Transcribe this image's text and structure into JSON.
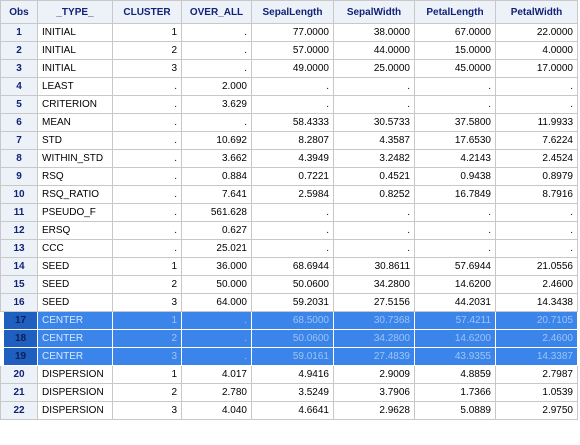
{
  "columns": [
    "Obs",
    "_TYPE_",
    "CLUSTER",
    "OVER_ALL",
    "SepalLength",
    "SepalWidth",
    "PetalLength",
    "PetalWidth"
  ],
  "rows": [
    [
      "1",
      "INITIAL",
      "1",
      ".",
      "77.0000",
      "38.0000",
      "67.0000",
      "22.0000"
    ],
    [
      "2",
      "INITIAL",
      "2",
      ".",
      "57.0000",
      "44.0000",
      "15.0000",
      "4.0000"
    ],
    [
      "3",
      "INITIAL",
      "3",
      ".",
      "49.0000",
      "25.0000",
      "45.0000",
      "17.0000"
    ],
    [
      "4",
      "LEAST",
      ".",
      "2.000",
      ".",
      ".",
      ".",
      "."
    ],
    [
      "5",
      "CRITERION",
      ".",
      "3.629",
      ".",
      ".",
      ".",
      "."
    ],
    [
      "6",
      "MEAN",
      ".",
      ".",
      "58.4333",
      "30.5733",
      "37.5800",
      "11.9933"
    ],
    [
      "7",
      "STD",
      ".",
      "10.692",
      "8.2807",
      "4.3587",
      "17.6530",
      "7.6224"
    ],
    [
      "8",
      "WITHIN_STD",
      ".",
      "3.662",
      "4.3949",
      "3.2482",
      "4.2143",
      "2.4524"
    ],
    [
      "9",
      "RSQ",
      ".",
      "0.884",
      "0.7221",
      "0.4521",
      "0.9438",
      "0.8979"
    ],
    [
      "10",
      "RSQ_RATIO",
      ".",
      "7.641",
      "2.5984",
      "0.8252",
      "16.7849",
      "8.7916"
    ],
    [
      "11",
      "PSEUDO_F",
      ".",
      "561.628",
      ".",
      ".",
      ".",
      "."
    ],
    [
      "12",
      "ERSQ",
      ".",
      "0.627",
      ".",
      ".",
      ".",
      "."
    ],
    [
      "13",
      "CCC",
      ".",
      "25.021",
      ".",
      ".",
      ".",
      "."
    ],
    [
      "14",
      "SEED",
      "1",
      "36.000",
      "68.6944",
      "30.8611",
      "57.6944",
      "21.0556"
    ],
    [
      "15",
      "SEED",
      "2",
      "50.000",
      "50.0600",
      "34.2800",
      "14.6200",
      "2.4600"
    ],
    [
      "16",
      "SEED",
      "3",
      "64.000",
      "59.2031",
      "27.5156",
      "44.2031",
      "14.3438"
    ],
    [
      "17",
      "CENTER",
      "1",
      ".",
      "68.5000",
      "30.7368",
      "57.4211",
      "20.7105"
    ],
    [
      "18",
      "CENTER",
      "2",
      ".",
      "50.0600",
      "34.2800",
      "14.6200",
      "2.4600"
    ],
    [
      "19",
      "CENTER",
      "3",
      ".",
      "59.0161",
      "27.4839",
      "43.9355",
      "14.3387"
    ],
    [
      "20",
      "DISPERSION",
      "1",
      "4.017",
      "4.9416",
      "2.9009",
      "4.8859",
      "2.7987"
    ],
    [
      "21",
      "DISPERSION",
      "2",
      "2.780",
      "3.5249",
      "3.7906",
      "1.7366",
      "1.0539"
    ],
    [
      "22",
      "DISPERSION",
      "3",
      "4.040",
      "4.6641",
      "2.9628",
      "5.0889",
      "2.9750"
    ]
  ],
  "selected_rows": [
    "17",
    "18",
    "19"
  ],
  "colors": {
    "header_bg": "#edf2f9",
    "header_text": "#112277",
    "selection": "#3b85ea",
    "grid_line": "#c8c8c8"
  }
}
